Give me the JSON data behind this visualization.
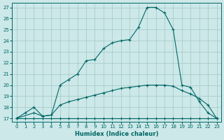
{
  "xlabel": "Humidex (Indice chaleur)",
  "bg_color": "#cce8e8",
  "grid_color": "#aacccc",
  "line_color": "#006666",
  "xlim": [
    -0.5,
    23.5
  ],
  "ylim": [
    16.7,
    27.4
  ],
  "xticks": [
    0,
    1,
    2,
    3,
    4,
    5,
    6,
    7,
    8,
    9,
    10,
    11,
    12,
    13,
    14,
    15,
    16,
    17,
    18,
    19,
    20,
    21,
    22,
    23
  ],
  "yticks": [
    17,
    18,
    19,
    20,
    21,
    22,
    23,
    24,
    25,
    26,
    27
  ],
  "curve1_x": [
    0,
    1,
    2,
    3,
    4,
    5,
    6,
    7,
    8,
    9,
    10,
    11,
    12,
    13,
    14,
    15,
    16,
    17,
    18,
    19,
    20,
    21,
    22,
    23
  ],
  "curve1_y": [
    17.0,
    17.5,
    18.0,
    17.2,
    17.3,
    20.0,
    20.5,
    21.0,
    22.2,
    22.3,
    23.3,
    23.8,
    24.0,
    24.1,
    25.2,
    27.0,
    27.0,
    26.5,
    25.0,
    20.0,
    19.8,
    18.5,
    17.5,
    17.0
  ],
  "curve2_x": [
    0,
    2,
    3,
    4,
    5,
    6,
    7,
    8,
    9,
    10,
    11,
    12,
    13,
    14,
    15,
    16,
    17,
    18,
    19,
    20,
    21,
    22,
    23
  ],
  "curve2_y": [
    17.0,
    17.5,
    17.2,
    17.3,
    18.2,
    18.5,
    18.7,
    18.9,
    19.1,
    19.3,
    19.5,
    19.7,
    19.8,
    19.9,
    20.0,
    20.0,
    20.0,
    19.9,
    19.5,
    19.2,
    18.8,
    18.2,
    17.0
  ],
  "curve3_x": [
    0,
    1,
    2,
    3,
    4,
    5,
    6,
    7,
    8,
    9,
    10,
    11,
    12,
    13,
    14,
    15,
    16,
    17,
    18,
    19,
    20,
    21,
    22,
    23
  ],
  "curve3_y": [
    17.0,
    17.0,
    17.0,
    17.0,
    17.0,
    17.0,
    17.0,
    17.0,
    17.0,
    17.0,
    17.0,
    17.0,
    17.0,
    17.0,
    17.0,
    17.0,
    17.0,
    17.0,
    17.0,
    17.0,
    17.0,
    17.0,
    17.0,
    17.0
  ]
}
